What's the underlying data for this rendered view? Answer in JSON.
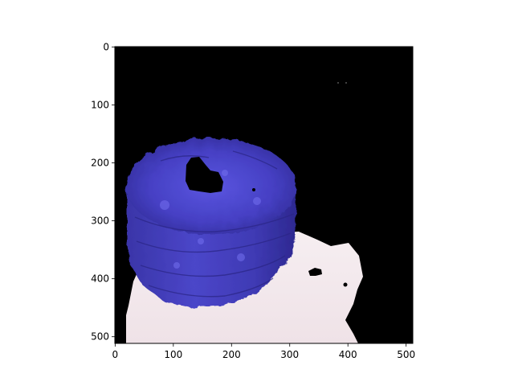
{
  "image_plot": {
    "axes": {
      "x_ticks": [
        0,
        100,
        200,
        300,
        400,
        500
      ],
      "y_ticks": [
        0,
        100,
        200,
        300,
        400,
        500
      ],
      "x_range": [
        0,
        511
      ],
      "y_range": [
        0,
        511
      ],
      "y_inverted": true
    },
    "content": {
      "description_icon": "blue-sponge-cake-on-white-plate-icon",
      "background_color": "#000000",
      "object_color": "#4a44c8",
      "plate_color": "#f2e6ea"
    }
  }
}
